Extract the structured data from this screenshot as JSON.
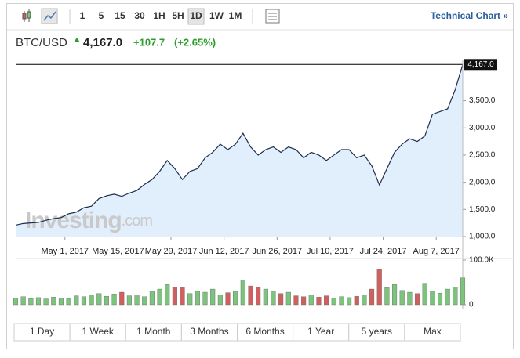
{
  "toolbar": {
    "intervals": [
      "1",
      "5",
      "15",
      "30",
      "1H",
      "5H",
      "1D",
      "1W",
      "1M"
    ],
    "selected": "1D",
    "link": "Technical Chart »"
  },
  "header": {
    "symbol": "BTC/USD",
    "price": "4,167.0",
    "change": "+107.7",
    "change_pct": "(+2.65%)"
  },
  "watermark": {
    "brand": "Investing",
    "suffix": ".com"
  },
  "chart_data": {
    "type": "area",
    "color": "#1f2d4d",
    "fill": "#dcebfb",
    "x": [
      0,
      2,
      4,
      6,
      8,
      10,
      12,
      14,
      16,
      18,
      20,
      22,
      24,
      26,
      28,
      30,
      32,
      34,
      36,
      38,
      40,
      42,
      44,
      46,
      48,
      50,
      52,
      54,
      56,
      58,
      60,
      62,
      64,
      66,
      68,
      70,
      72,
      74,
      76,
      78,
      80,
      82,
      84,
      86,
      88,
      90,
      92,
      94,
      96,
      98,
      100,
      102,
      104,
      106,
      108,
      110,
      112,
      114,
      116,
      118
    ],
    "values": [
      1210,
      1240,
      1250,
      1260,
      1300,
      1330,
      1350,
      1420,
      1450,
      1530,
      1560,
      1700,
      1750,
      1780,
      1740,
      1800,
      1850,
      1960,
      2050,
      2200,
      2400,
      2250,
      2050,
      2200,
      2250,
      2450,
      2550,
      2700,
      2600,
      2700,
      2900,
      2650,
      2500,
      2600,
      2650,
      2550,
      2650,
      2600,
      2450,
      2550,
      2500,
      2400,
      2500,
      2600,
      2600,
      2450,
      2500,
      2300,
      1950,
      2250,
      2550,
      2700,
      2800,
      2750,
      2850,
      3250,
      3300,
      3350,
      3700,
      4167
    ],
    "xlim": [
      0,
      118
    ],
    "xticks": [
      {
        "value": 13,
        "label": "May 1, 2017"
      },
      {
        "value": 27,
        "label": "May 15, 2017"
      },
      {
        "value": 41,
        "label": "May 29, 2017"
      },
      {
        "value": 55,
        "label": "Jun 12, 2017"
      },
      {
        "value": 69,
        "label": "Jun 26, 2017"
      },
      {
        "value": 83,
        "label": "Jul 10, 2017"
      },
      {
        "value": 97,
        "label": "Jul 24, 2017"
      },
      {
        "value": 111,
        "label": "Aug 7, 2017"
      }
    ],
    "ylim": [
      1000,
      4200
    ],
    "yticks": [
      {
        "value": 1000,
        "label": "1,000.0"
      },
      {
        "value": 1500,
        "label": "1,500.0"
      },
      {
        "value": 2000,
        "label": "2,000.0"
      },
      {
        "value": 2500,
        "label": "2,500.0"
      },
      {
        "value": 3000,
        "label": "3,000.0"
      },
      {
        "value": 3500,
        "label": "3,500.0"
      }
    ],
    "last_price": {
      "value": 4167,
      "label": "4,167.0"
    },
    "volume": {
      "values": [
        15000,
        18000,
        14000,
        16000,
        13000,
        17000,
        15000,
        14000,
        20000,
        18000,
        22000,
        25000,
        19000,
        24000,
        28000,
        20000,
        22000,
        18000,
        30000,
        35000,
        45000,
        40000,
        38000,
        25000,
        30000,
        28000,
        35000,
        22000,
        27000,
        30000,
        55000,
        42000,
        40000,
        35000,
        30000,
        25000,
        28000,
        20000,
        18000,
        22000,
        17000,
        20000,
        15000,
        18000,
        16000,
        19000,
        22000,
        35000,
        80000,
        38000,
        45000,
        32000,
        28000,
        25000,
        48000,
        30000,
        26000,
        35000,
        40000,
        60000
      ],
      "up_color": "#7cc47c",
      "down_color": "#d06060",
      "ylim": [
        0,
        100000
      ],
      "yticks": [
        0,
        {
          "value": 100000,
          "label": "100.0K"
        }
      ]
    }
  },
  "ranges": [
    "1 Day",
    "1 Week",
    "1 Month",
    "3 Months",
    "6 Months",
    "1 Year",
    "5 years",
    "Max"
  ]
}
